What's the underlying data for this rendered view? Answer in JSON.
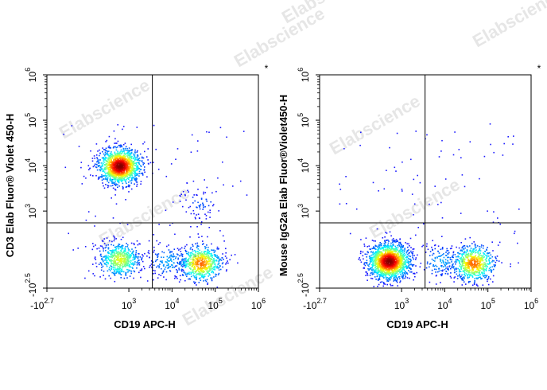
{
  "chart_data": [
    {
      "type": "scatter",
      "title": "",
      "xlabel": "CD19 APC-H",
      "ylabel": "CD3 Elab Fluor® Violet 450-H",
      "x_scale": "biexponential",
      "y_scale": "biexponential",
      "x_ticks": [
        {
          "value": -501,
          "base": "-10",
          "exp": "2.7"
        },
        {
          "value": 1000,
          "base": "10",
          "exp": "3"
        },
        {
          "value": 10000,
          "base": "10",
          "exp": "4"
        },
        {
          "value": 100000,
          "base": "10",
          "exp": "5"
        },
        {
          "value": 1000000,
          "base": "10",
          "exp": "6"
        }
      ],
      "y_ticks": [
        {
          "value": -316,
          "base": "-10",
          "exp": "2.5"
        },
        {
          "value": 1000,
          "base": "10",
          "exp": "3"
        },
        {
          "value": 10000,
          "base": "10",
          "exp": "4"
        },
        {
          "value": 100000,
          "base": "10",
          "exp": "5"
        },
        {
          "value": 1000000,
          "base": "10",
          "exp": "6"
        }
      ],
      "gate_x": 3500,
      "gate_y": 550,
      "corner_mark": "*",
      "populations": [
        {
          "x_center": 600,
          "y_center": 10000,
          "count": 1400,
          "peak": 1.0
        },
        {
          "x_center": 600,
          "y_center": 20,
          "count": 550,
          "peak": 0.55
        },
        {
          "x_center": 45000,
          "y_center": -20,
          "count": 650,
          "peak": 0.75
        },
        {
          "x_center": 8000,
          "y_center": 0,
          "count": 160,
          "peak": 0.2
        },
        {
          "x_center": 45000,
          "y_center": 1500,
          "count": 70,
          "peak": 0.1
        }
      ]
    },
    {
      "type": "scatter",
      "title": "",
      "xlabel": "CD19 APC-H",
      "ylabel": "Mouse IgG2a Elab Fluor®Violet450-H",
      "x_scale": "biexponential",
      "y_scale": "biexponential",
      "x_ticks": [
        {
          "value": -501,
          "base": "-10",
          "exp": "2.7"
        },
        {
          "value": 1000,
          "base": "10",
          "exp": "3"
        },
        {
          "value": 10000,
          "base": "10",
          "exp": "4"
        },
        {
          "value": 100000,
          "base": "10",
          "exp": "5"
        },
        {
          "value": 1000000,
          "base": "10",
          "exp": "6"
        }
      ],
      "y_ticks": [
        {
          "value": -316,
          "base": "-10",
          "exp": "2.5"
        },
        {
          "value": 1000,
          "base": "10",
          "exp": "3"
        },
        {
          "value": 10000,
          "base": "10",
          "exp": "4"
        },
        {
          "value": 100000,
          "base": "10",
          "exp": "5"
        },
        {
          "value": 1000000,
          "base": "10",
          "exp": "6"
        }
      ],
      "gate_x": 3500,
      "gate_y": 550,
      "corner_mark": "*",
      "populations": [
        {
          "x_center": 500,
          "y_center": 0,
          "count": 1700,
          "peak": 1.0
        },
        {
          "x_center": 45000,
          "y_center": -20,
          "count": 650,
          "peak": 0.75
        },
        {
          "x_center": 8000,
          "y_center": 0,
          "count": 140,
          "peak": 0.2
        }
      ]
    }
  ],
  "watermark": {
    "text": "Elabscience"
  }
}
